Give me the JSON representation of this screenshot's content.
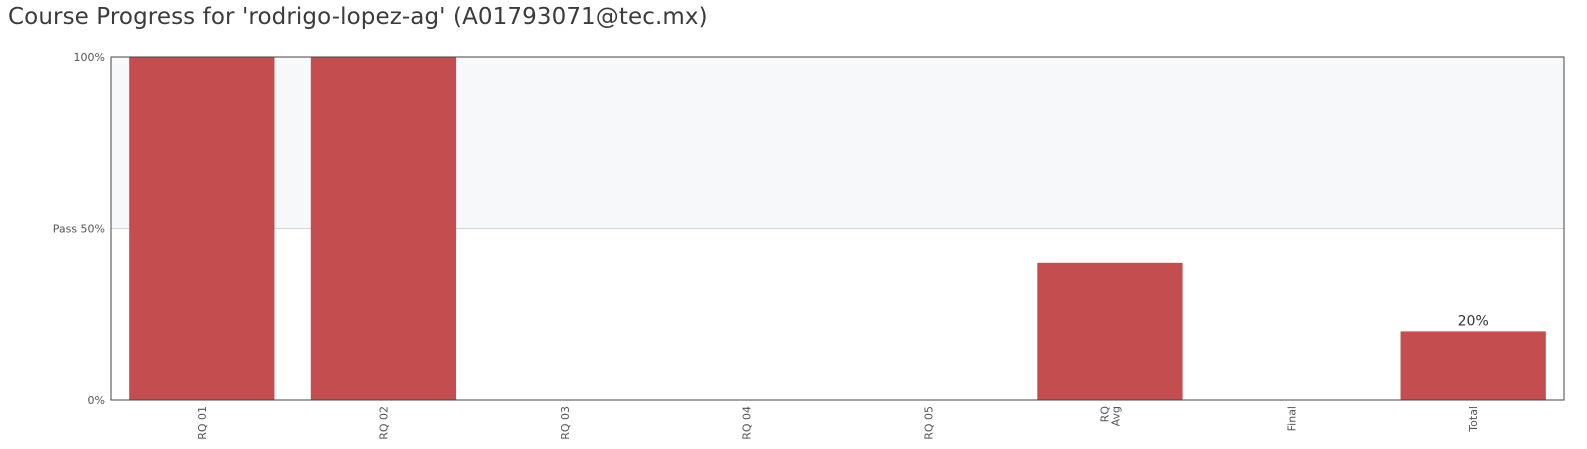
{
  "page": {
    "title": "Course Progress for 'rodrigo-lopez-ag' (A01793071@tec.mx)"
  },
  "chart_data": {
    "type": "bar",
    "title": "Course Progress for 'rodrigo-lopez-ag' (A01793071@tec.mx)",
    "categories": [
      [
        "RQ 01"
      ],
      [
        "RQ 02"
      ],
      [
        "RQ 03"
      ],
      [
        "RQ 04"
      ],
      [
        "RQ 05"
      ],
      [
        "RQ",
        "Avg"
      ],
      [
        "Final"
      ],
      [
        "Total"
      ]
    ],
    "values": [
      100,
      100,
      0,
      0,
      0,
      40,
      0,
      20
    ],
    "value_labels": [
      "",
      "",
      "",
      "",
      "",
      "",
      "",
      "20%"
    ],
    "ylim": [
      0,
      100
    ],
    "yticks": [
      {
        "value": 0,
        "label": "0%"
      },
      {
        "value": 50,
        "label": "Pass 50%"
      },
      {
        "value": 100,
        "label": "100%"
      }
    ],
    "pass_threshold": 50,
    "grid": false,
    "colors": {
      "bar": "#c44e4f",
      "pass_zone": "#f7f8fa",
      "axis": "#444444",
      "threshold_line": "#d5d5d5"
    }
  }
}
